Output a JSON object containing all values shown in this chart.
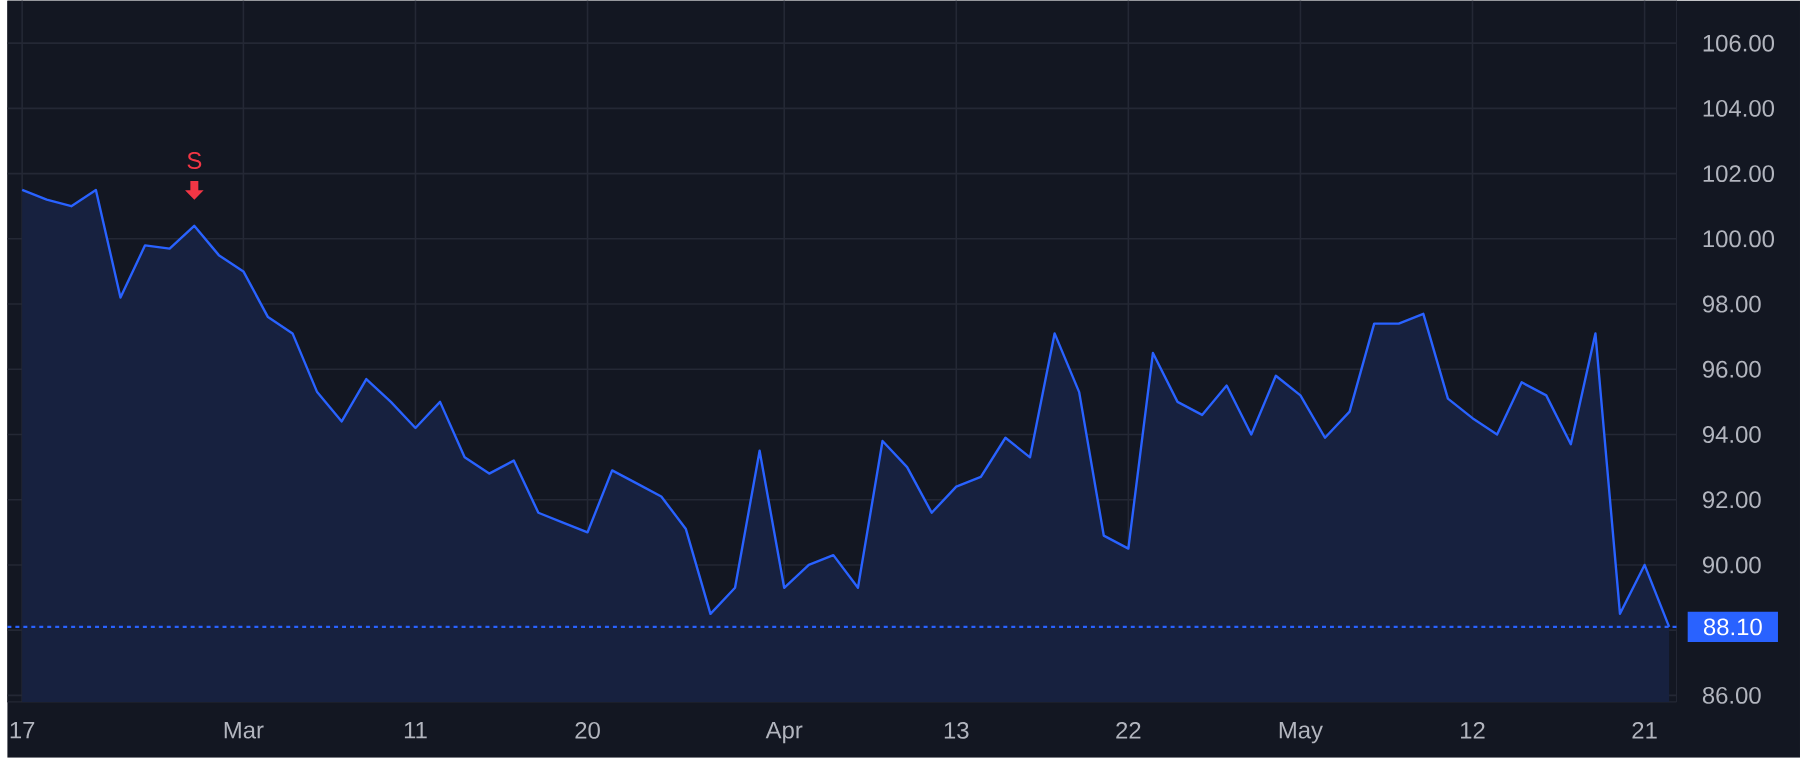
{
  "chart_data": {
    "type": "area",
    "categories": [
      "17",
      null,
      null,
      null,
      null,
      null,
      null,
      null,
      null,
      "Mar",
      null,
      null,
      null,
      null,
      null,
      null,
      "11",
      null,
      null,
      null,
      null,
      null,
      null,
      "20",
      null,
      null,
      null,
      null,
      null,
      null,
      null,
      "Apr",
      null,
      null,
      null,
      null,
      null,
      null,
      "13",
      null,
      null,
      null,
      null,
      null,
      null,
      "22",
      null,
      null,
      null,
      null,
      null,
      null,
      "May",
      null,
      null,
      null,
      null,
      null,
      null,
      "12",
      null,
      null,
      null,
      null,
      null,
      null,
      "21",
      null
    ],
    "series": [
      {
        "color": "#2962ff",
        "values": [
          101.5,
          101.2,
          101.0,
          101.5,
          98.2,
          99.8,
          99.7,
          100.4,
          99.5,
          99.0,
          97.6,
          97.1,
          95.3,
          94.4,
          95.7,
          95.0,
          94.2,
          95.0,
          93.3,
          92.8,
          93.2,
          91.6,
          91.3,
          91.0,
          92.9,
          92.5,
          92.1,
          91.1,
          88.5,
          89.3,
          93.5,
          89.3,
          90.0,
          90.3,
          89.3,
          93.8,
          93.0,
          91.6,
          92.4,
          92.7,
          93.9,
          93.3,
          97.1,
          95.3,
          90.9,
          90.5,
          96.5,
          95.0,
          94.6,
          95.5,
          94.0,
          95.8,
          95.2,
          93.9,
          94.7,
          97.4,
          97.4,
          97.7,
          95.1,
          94.5,
          94.0,
          95.6,
          95.2,
          93.7,
          97.1,
          88.5,
          90.0,
          88.1
        ]
      }
    ],
    "ylim": [
      85.8,
      107.3
    ],
    "yticks": [
      {
        "value": 86,
        "label": "86.00"
      },
      {
        "value": 88,
        "label": null
      },
      {
        "value": 90,
        "label": "90.00"
      },
      {
        "value": 92,
        "label": "92.00"
      },
      {
        "value": 94,
        "label": "94.00"
      },
      {
        "value": 96,
        "label": "96.00"
      },
      {
        "value": 98,
        "label": "98.00"
      },
      {
        "value": 100,
        "label": "100.00"
      },
      {
        "value": 102,
        "label": "102.00"
      },
      {
        "value": 104,
        "label": "104.00"
      },
      {
        "value": 106,
        "label": "106.00"
      }
    ],
    "grid": true,
    "ref_lines": [
      {
        "axis": "y",
        "value": 88.1,
        "label": "88.10",
        "color": "#2962ff",
        "line_style": "dotted"
      }
    ],
    "annotations": [
      "S"
    ]
  }
}
